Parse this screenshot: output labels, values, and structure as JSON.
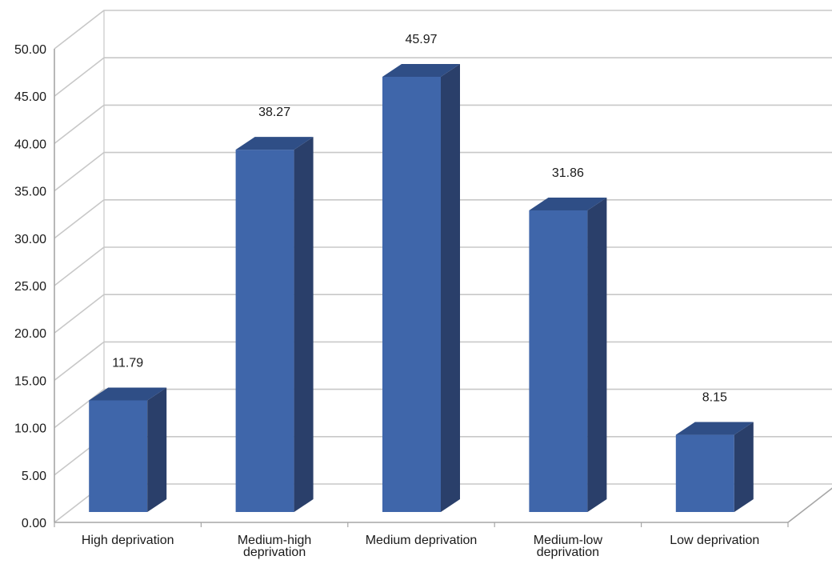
{
  "chart_data": {
    "type": "bar",
    "categories": [
      [
        "High deprivation"
      ],
      [
        "Medium-high",
        "deprivation"
      ],
      [
        "Medium deprivation"
      ],
      [
        "Medium-low",
        "deprivation"
      ],
      [
        "Low deprivation"
      ]
    ],
    "values": [
      11.79,
      38.27,
      45.97,
      31.86,
      8.15
    ],
    "value_labels": [
      "11.79",
      "38.27",
      "45.97",
      "31.86",
      "8.15"
    ],
    "ylim": [
      0,
      50
    ],
    "yticks": [
      "0.00",
      "5.00",
      "10.00",
      "15.00",
      "20.00",
      "25.00",
      "30.00",
      "35.00",
      "40.00",
      "45.00",
      "50.00"
    ],
    "grid": true,
    "style": "3d-column",
    "colors": {
      "bar_front": "#3F66AA",
      "bar_side": "#2A3F6A",
      "bar_top": "#2F4E86",
      "grid": "#c8c8c8",
      "axis": "#a6a6a6"
    }
  }
}
